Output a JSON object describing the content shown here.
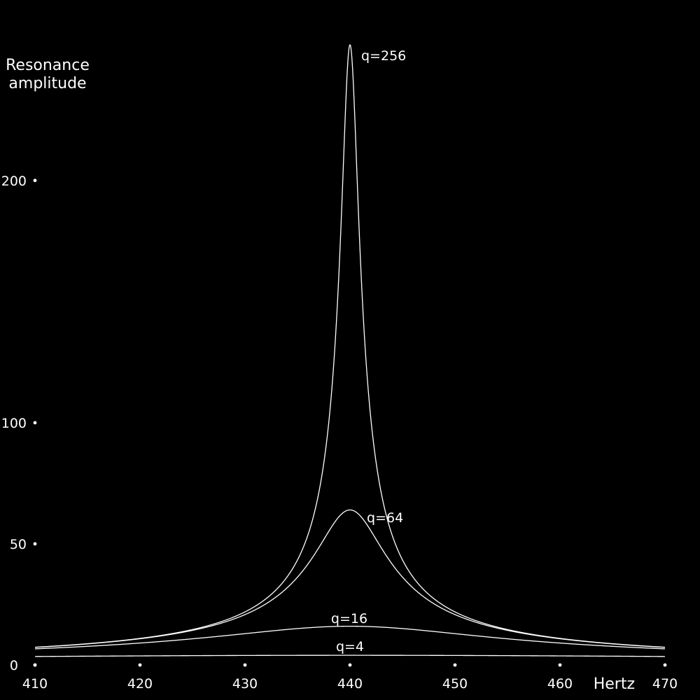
{
  "chart_data": {
    "type": "line",
    "title": "",
    "xlabel": "Hertz",
    "ylabel": [
      "Resonance",
      "amplitude"
    ],
    "xlim": [
      410,
      470
    ],
    "ylim": [
      0,
      256
    ],
    "x_ticks": [
      410,
      420,
      430,
      440,
      450,
      460,
      470
    ],
    "y_ticks": [
      0,
      50,
      100,
      200
    ],
    "grid": false,
    "legend": "none",
    "center_frequency": 440,
    "series": [
      {
        "label": "q=4",
        "q": 4,
        "peak": 4
      },
      {
        "label": "q=16",
        "q": 16,
        "peak": 16
      },
      {
        "label": "q=64",
        "q": 64,
        "peak": 64
      },
      {
        "label": "q=256",
        "q": 256,
        "peak": 256
      }
    ],
    "colors": {
      "background": "#000000",
      "foreground": "#ffffff"
    }
  }
}
